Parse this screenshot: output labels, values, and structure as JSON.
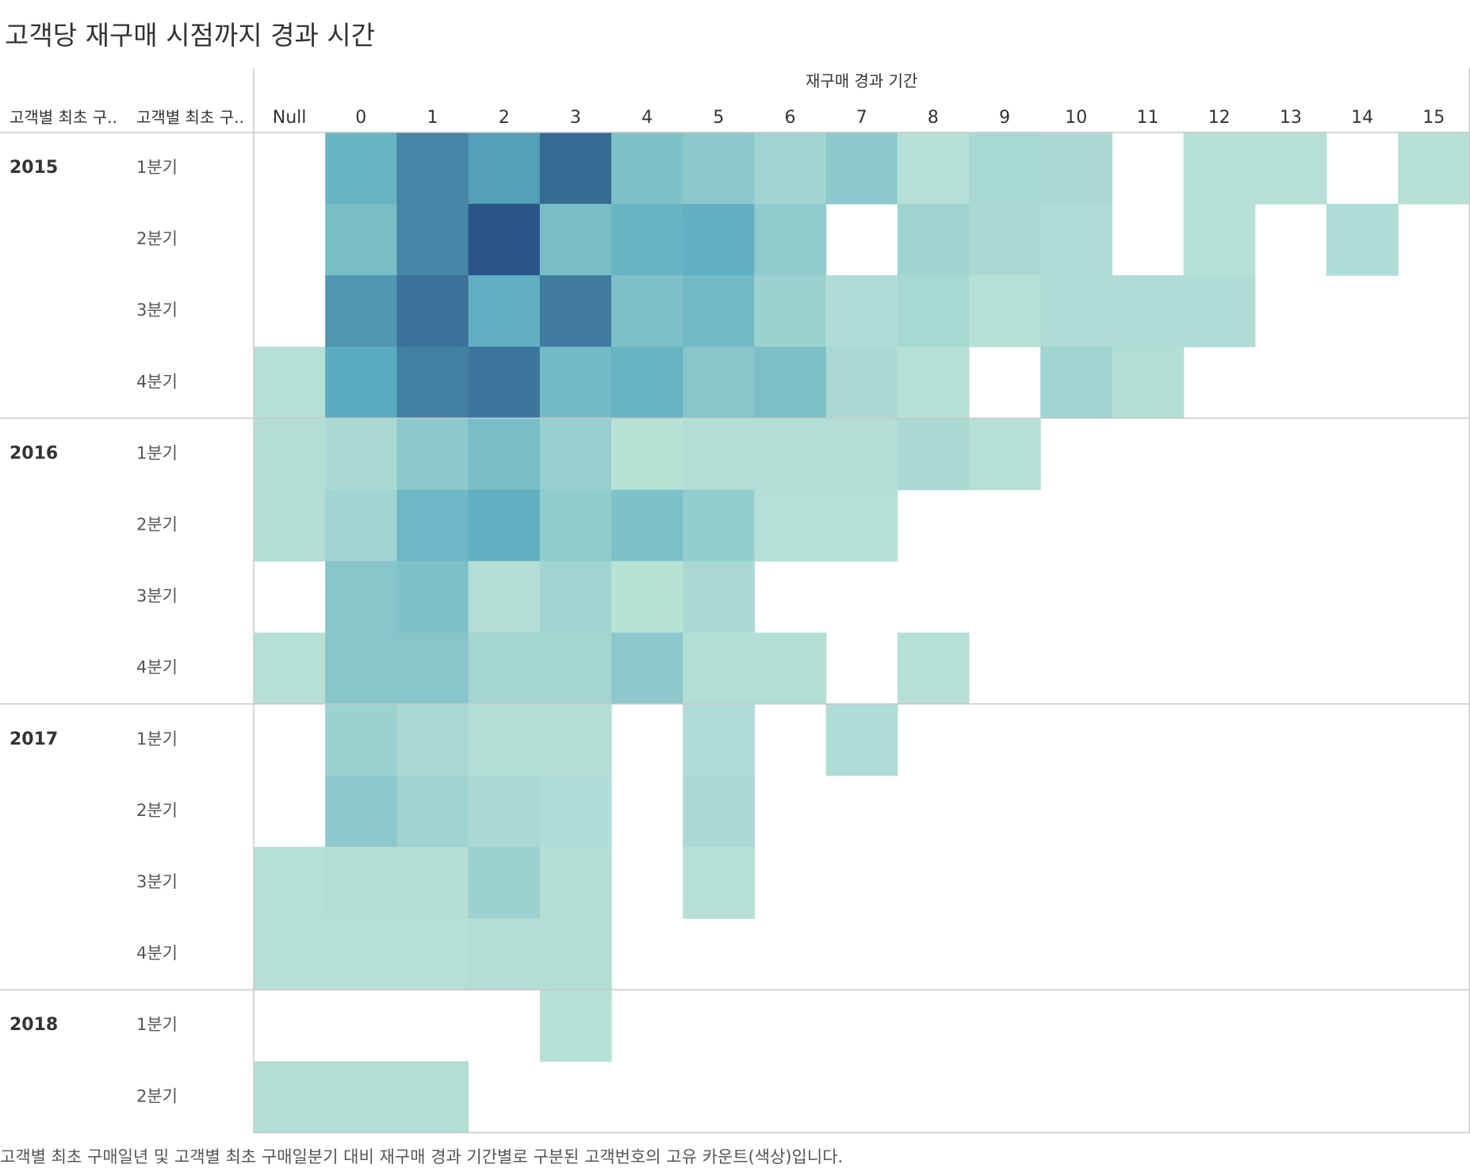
{
  "title": "고객당 재구매 시점까지 경과 시간",
  "caption": "고객별 최초 구매일년 및 고객별 최초 구매일분기 대비 재구매 경과 기간별로 구분된 고객번호의 고유 카운트(색상)입니다.",
  "chart_data": {
    "type": "heatmap",
    "column_group_label": "재구매 경과 기간",
    "row_header_labels": [
      "고객별 최초 구..",
      "고객별 최초 구.."
    ],
    "columns": [
      "Null",
      "0",
      "1",
      "2",
      "3",
      "4",
      "5",
      "6",
      "7",
      "8",
      "9",
      "10",
      "11",
      "12",
      "13",
      "14",
      "15"
    ],
    "years": [
      {
        "year": "2015",
        "quarters": [
          "1분기",
          "2분기",
          "3분기",
          "4분기"
        ]
      },
      {
        "year": "2016",
        "quarters": [
          "1분기",
          "2분기",
          "3분기",
          "4분기"
        ]
      },
      {
        "year": "2017",
        "quarters": [
          "1분기",
          "2분기",
          "3분기",
          "4분기"
        ]
      },
      {
        "year": "2018",
        "quarters": [
          "1분기",
          "2분기"
        ]
      }
    ],
    "color_scale": {
      "min_color": "#c0e6d8",
      "mid_color": "#5aacc0",
      "max_color": "#2b5586"
    },
    "values": [
      [
        null,
        0.52,
        0.78,
        0.66,
        0.9,
        0.38,
        0.3,
        0.18,
        0.3,
        0.06,
        0.15,
        0.13,
        null,
        0.06,
        0.06,
        null,
        0.06
      ],
      [
        null,
        0.42,
        0.78,
        1.0,
        0.42,
        0.52,
        0.56,
        0.28,
        null,
        0.2,
        0.13,
        0.1,
        null,
        0.06,
        null,
        0.1,
        null
      ],
      [
        null,
        0.7,
        0.86,
        0.56,
        0.82,
        0.38,
        0.46,
        0.22,
        0.1,
        0.15,
        0.06,
        0.1,
        0.1,
        0.1,
        null,
        null,
        null
      ],
      [
        0.06,
        0.6,
        0.8,
        0.85,
        0.46,
        0.52,
        0.34,
        0.4,
        0.13,
        0.06,
        null,
        0.18,
        0.08,
        null,
        null,
        null,
        null
      ],
      [
        0.08,
        0.13,
        0.3,
        0.42,
        0.24,
        0.04,
        0.08,
        0.08,
        0.08,
        0.13,
        0.06,
        null,
        null,
        null,
        null,
        null,
        null
      ],
      [
        0.08,
        0.18,
        0.48,
        0.56,
        0.28,
        0.38,
        0.26,
        0.06,
        0.06,
        null,
        null,
        null,
        null,
        null,
        null,
        null,
        null
      ],
      [
        null,
        0.34,
        0.38,
        0.08,
        0.18,
        0.04,
        0.13,
        null,
        null,
        null,
        null,
        null,
        null,
        null,
        null,
        null,
        null
      ],
      [
        0.06,
        0.34,
        0.34,
        0.16,
        0.16,
        0.3,
        0.08,
        0.08,
        null,
        0.06,
        null,
        null,
        null,
        null,
        null,
        null,
        null
      ],
      [
        null,
        0.22,
        0.13,
        0.08,
        0.08,
        null,
        0.1,
        null,
        0.1,
        null,
        null,
        null,
        null,
        null,
        null,
        null,
        null
      ],
      [
        null,
        0.3,
        0.2,
        0.13,
        0.1,
        null,
        0.13,
        null,
        null,
        null,
        null,
        null,
        null,
        null,
        null,
        null,
        null
      ],
      [
        0.06,
        0.08,
        0.08,
        0.22,
        0.08,
        null,
        0.06,
        null,
        null,
        null,
        null,
        null,
        null,
        null,
        null,
        null,
        null
      ],
      [
        0.06,
        0.06,
        0.06,
        0.08,
        0.08,
        null,
        null,
        null,
        null,
        null,
        null,
        null,
        null,
        null,
        null,
        null,
        null
      ],
      [
        null,
        null,
        null,
        null,
        0.06,
        null,
        null,
        null,
        null,
        null,
        null,
        null,
        null,
        null,
        null,
        null,
        null
      ],
      [
        0.08,
        0.08,
        0.08,
        null,
        null,
        null,
        null,
        null,
        null,
        null,
        null,
        null,
        null,
        null,
        null,
        null,
        null
      ]
    ]
  }
}
